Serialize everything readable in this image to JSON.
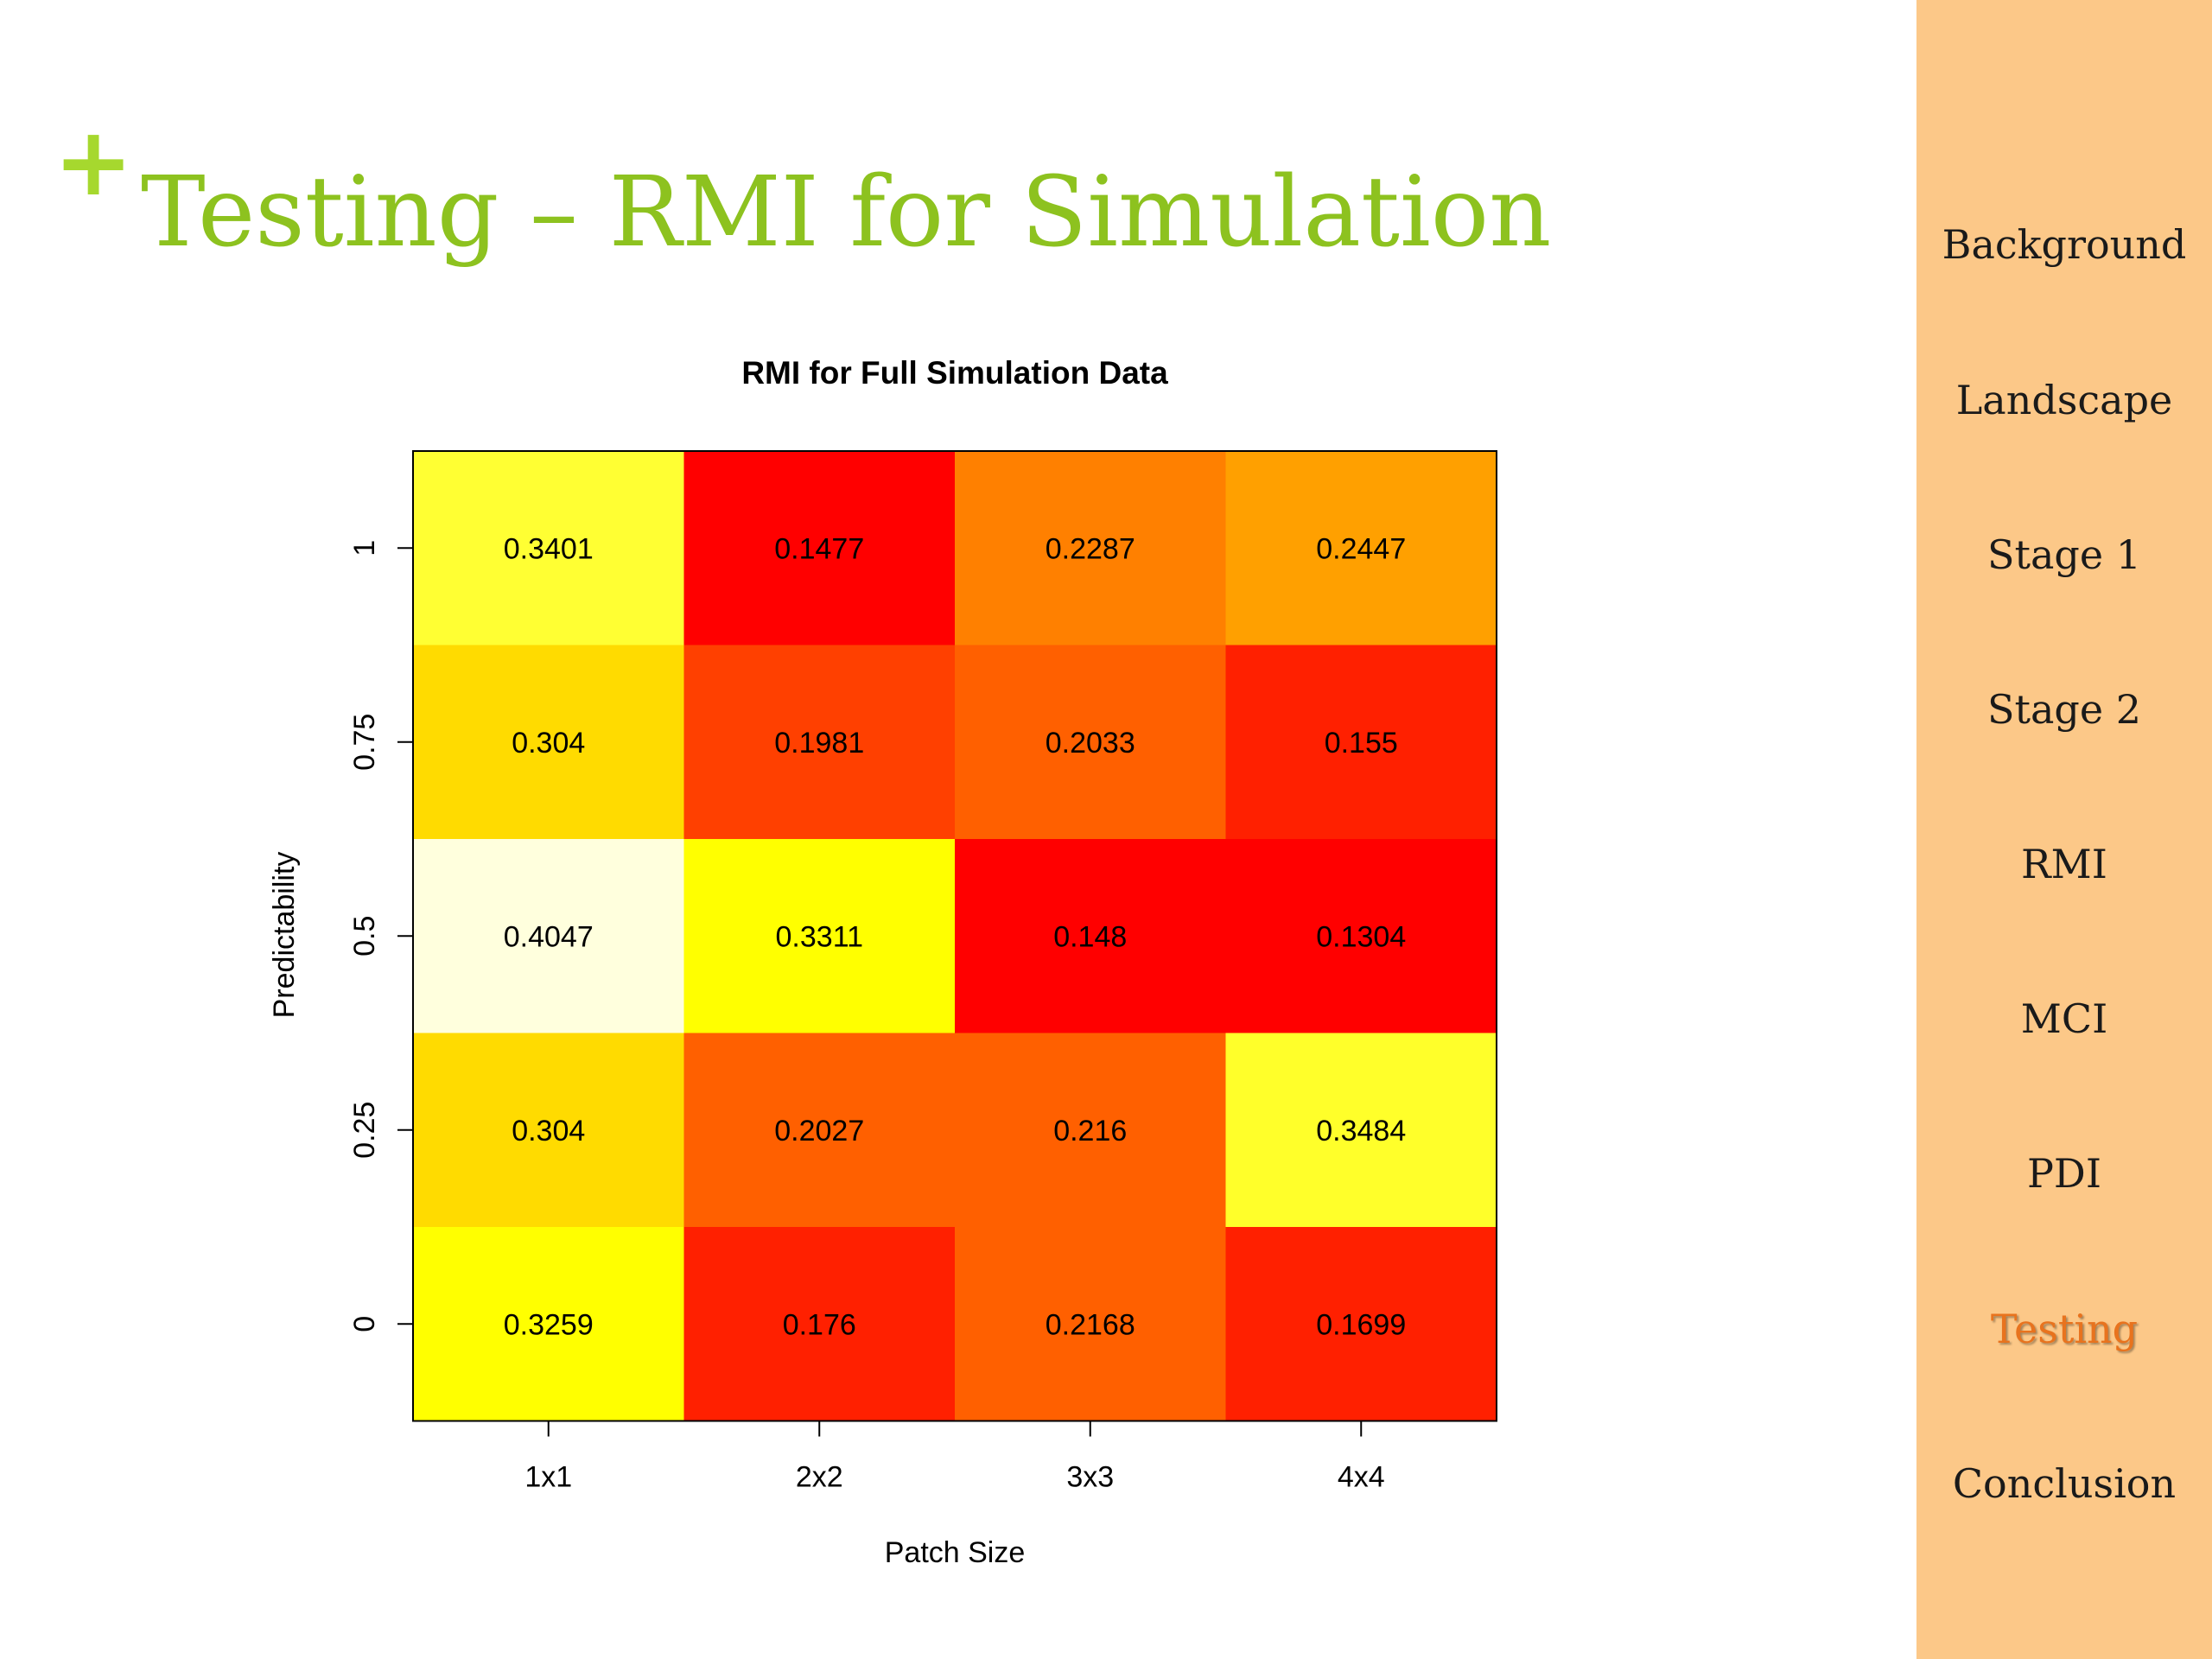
{
  "slide": {
    "plus_symbol": "+",
    "title": "Testing – RMI for Simulation",
    "title_color": "#8DC21F",
    "plus_color": "#A6D82E",
    "background": "#FFFFFF"
  },
  "sidebar": {
    "background": "#FCC888",
    "text_color": "#1A1A1A",
    "active_color": "#E8731E",
    "items": [
      {
        "label": "Background",
        "active": false
      },
      {
        "label": "Landscape",
        "active": false
      },
      {
        "label": "Stage 1",
        "active": false
      },
      {
        "label": "Stage 2",
        "active": false
      },
      {
        "label": "RMI",
        "active": false
      },
      {
        "label": "MCI",
        "active": false
      },
      {
        "label": "PDI",
        "active": false
      },
      {
        "label": "Testing",
        "active": true
      },
      {
        "label": "Conclusion",
        "active": false
      }
    ]
  },
  "chart_data": {
    "type": "heatmap",
    "title": "RMI for Full Simulation Data",
    "xlabel": "Patch Size",
    "ylabel": "Predictability",
    "x_categories": [
      "1x1",
      "2x2",
      "3x3",
      "4x4"
    ],
    "y_categories": [
      "0",
      "0.25",
      "0.5",
      "0.75",
      "1"
    ],
    "rows": [
      {
        "y": "1",
        "values": [
          "0.3401",
          "0.1477",
          "0.2287",
          "0.2447"
        ],
        "colors": [
          "#FFFF33",
          "#FF0000",
          "#FF8000",
          "#FFA000"
        ]
      },
      {
        "y": "0.75",
        "values": [
          "0.304",
          "0.1981",
          "0.2033",
          "0.155"
        ],
        "colors": [
          "#FFDB00",
          "#FF4000",
          "#FF6000",
          "#FF2000"
        ]
      },
      {
        "y": "0.5",
        "values": [
          "0.4047",
          "0.3311",
          "0.148",
          "0.1304"
        ],
        "colors": [
          "#FFFFDD",
          "#FFFF00",
          "#FF0000",
          "#FF0000"
        ]
      },
      {
        "y": "0.25",
        "values": [
          "0.304",
          "0.2027",
          "0.216",
          "0.3484"
        ],
        "colors": [
          "#FFDB00",
          "#FF6000",
          "#FF6000",
          "#FFFF2A"
        ]
      },
      {
        "y": "0",
        "values": [
          "0.3259",
          "0.176",
          "0.2168",
          "0.1699"
        ],
        "colors": [
          "#FFFF00",
          "#FF2000",
          "#FF6000",
          "#FF2000"
        ]
      }
    ],
    "color_scale": "heat (red → orange → yellow → light yellow, low → high)",
    "grid": false,
    "legend": "none"
  }
}
